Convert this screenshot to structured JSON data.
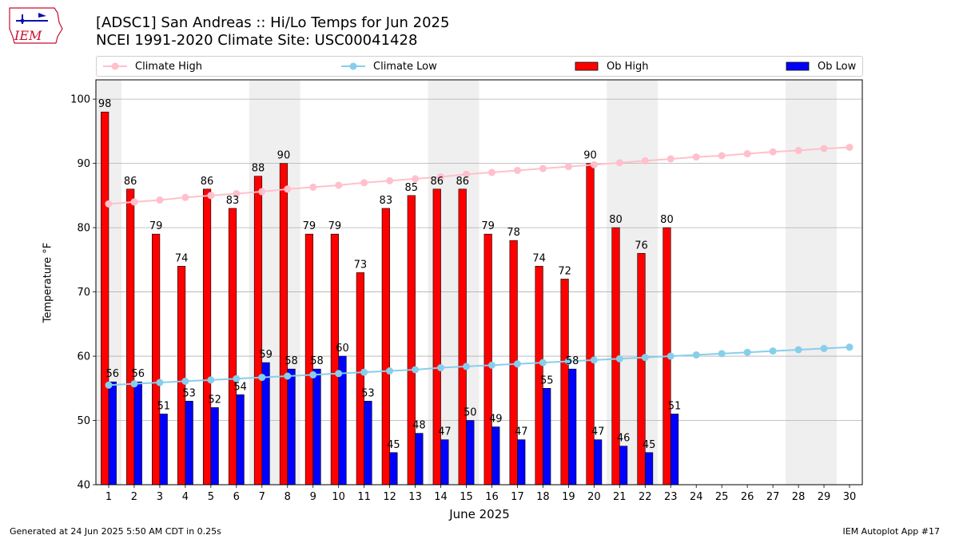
{
  "logo": {
    "text": "IEM",
    "icon": "iowa-weather-logo-icon",
    "color": "#c8102e"
  },
  "header": {
    "title_line1": "[ADSC1] San Andreas :: Hi/Lo Temps for Jun 2025",
    "title_line2": "NCEI 1991-2020 Climate Site: USC00041428"
  },
  "legend": {
    "climate_high": "Climate High",
    "climate_low": "Climate Low",
    "ob_high": "Ob High",
    "ob_low": "Ob Low"
  },
  "footer": {
    "generated": "Generated at 24 Jun 2025 5:50 AM CDT in 0.25s",
    "app": "IEM Autoplot App #17"
  },
  "chart_data": {
    "type": "bar",
    "title": "[ADSC1] San Andreas :: Hi/Lo Temps for Jun 2025",
    "xlabel": "June 2025",
    "ylabel": "Temperature °F",
    "ylim": [
      40,
      103
    ],
    "yticks": [
      40,
      50,
      60,
      70,
      80,
      90,
      100
    ],
    "grid": "horizontal",
    "legend_position": "top",
    "weekend_shading": [
      [
        0.5,
        1.5
      ],
      [
        6.5,
        8.5
      ],
      [
        13.5,
        15.5
      ],
      [
        20.5,
        22.5
      ],
      [
        27.5,
        29.5
      ]
    ],
    "days": [
      1,
      2,
      3,
      4,
      5,
      6,
      7,
      8,
      9,
      10,
      11,
      12,
      13,
      14,
      15,
      16,
      17,
      18,
      19,
      20,
      21,
      22,
      23,
      24,
      25,
      26,
      27,
      28,
      29,
      30
    ],
    "series": [
      {
        "name": "Ob High",
        "type": "bar",
        "color": "#ff0000",
        "values": [
          98,
          86,
          79,
          74,
          86,
          83,
          88,
          90,
          79,
          79,
          73,
          83,
          85,
          86,
          86,
          79,
          78,
          74,
          72,
          90,
          80,
          76,
          80
        ]
      },
      {
        "name": "Ob Low",
        "type": "bar",
        "color": "#0000ff",
        "values": [
          56,
          56,
          51,
          53,
          52,
          54,
          59,
          58,
          58,
          60,
          53,
          45,
          48,
          47,
          50,
          49,
          47,
          55,
          58,
          47,
          46,
          45,
          51
        ]
      },
      {
        "name": "Climate High",
        "type": "line",
        "color": "#ffc0cb",
        "values": [
          83.7,
          84.0,
          84.3,
          84.7,
          85.0,
          85.3,
          85.6,
          86.0,
          86.3,
          86.6,
          87.0,
          87.3,
          87.6,
          87.9,
          88.3,
          88.6,
          88.9,
          89.2,
          89.5,
          89.8,
          90.1,
          90.4,
          90.7,
          91.0,
          91.2,
          91.5,
          91.8,
          92.0,
          92.3,
          92.5
        ]
      },
      {
        "name": "Climate Low",
        "type": "line",
        "color": "#87ceeb",
        "values": [
          55.5,
          55.7,
          55.9,
          56.1,
          56.3,
          56.5,
          56.7,
          56.9,
          57.1,
          57.3,
          57.5,
          57.7,
          57.9,
          58.2,
          58.4,
          58.6,
          58.8,
          59.0,
          59.2,
          59.4,
          59.6,
          59.8,
          60.0,
          60.2,
          60.4,
          60.6,
          60.8,
          61.0,
          61.2,
          61.4
        ]
      }
    ]
  }
}
